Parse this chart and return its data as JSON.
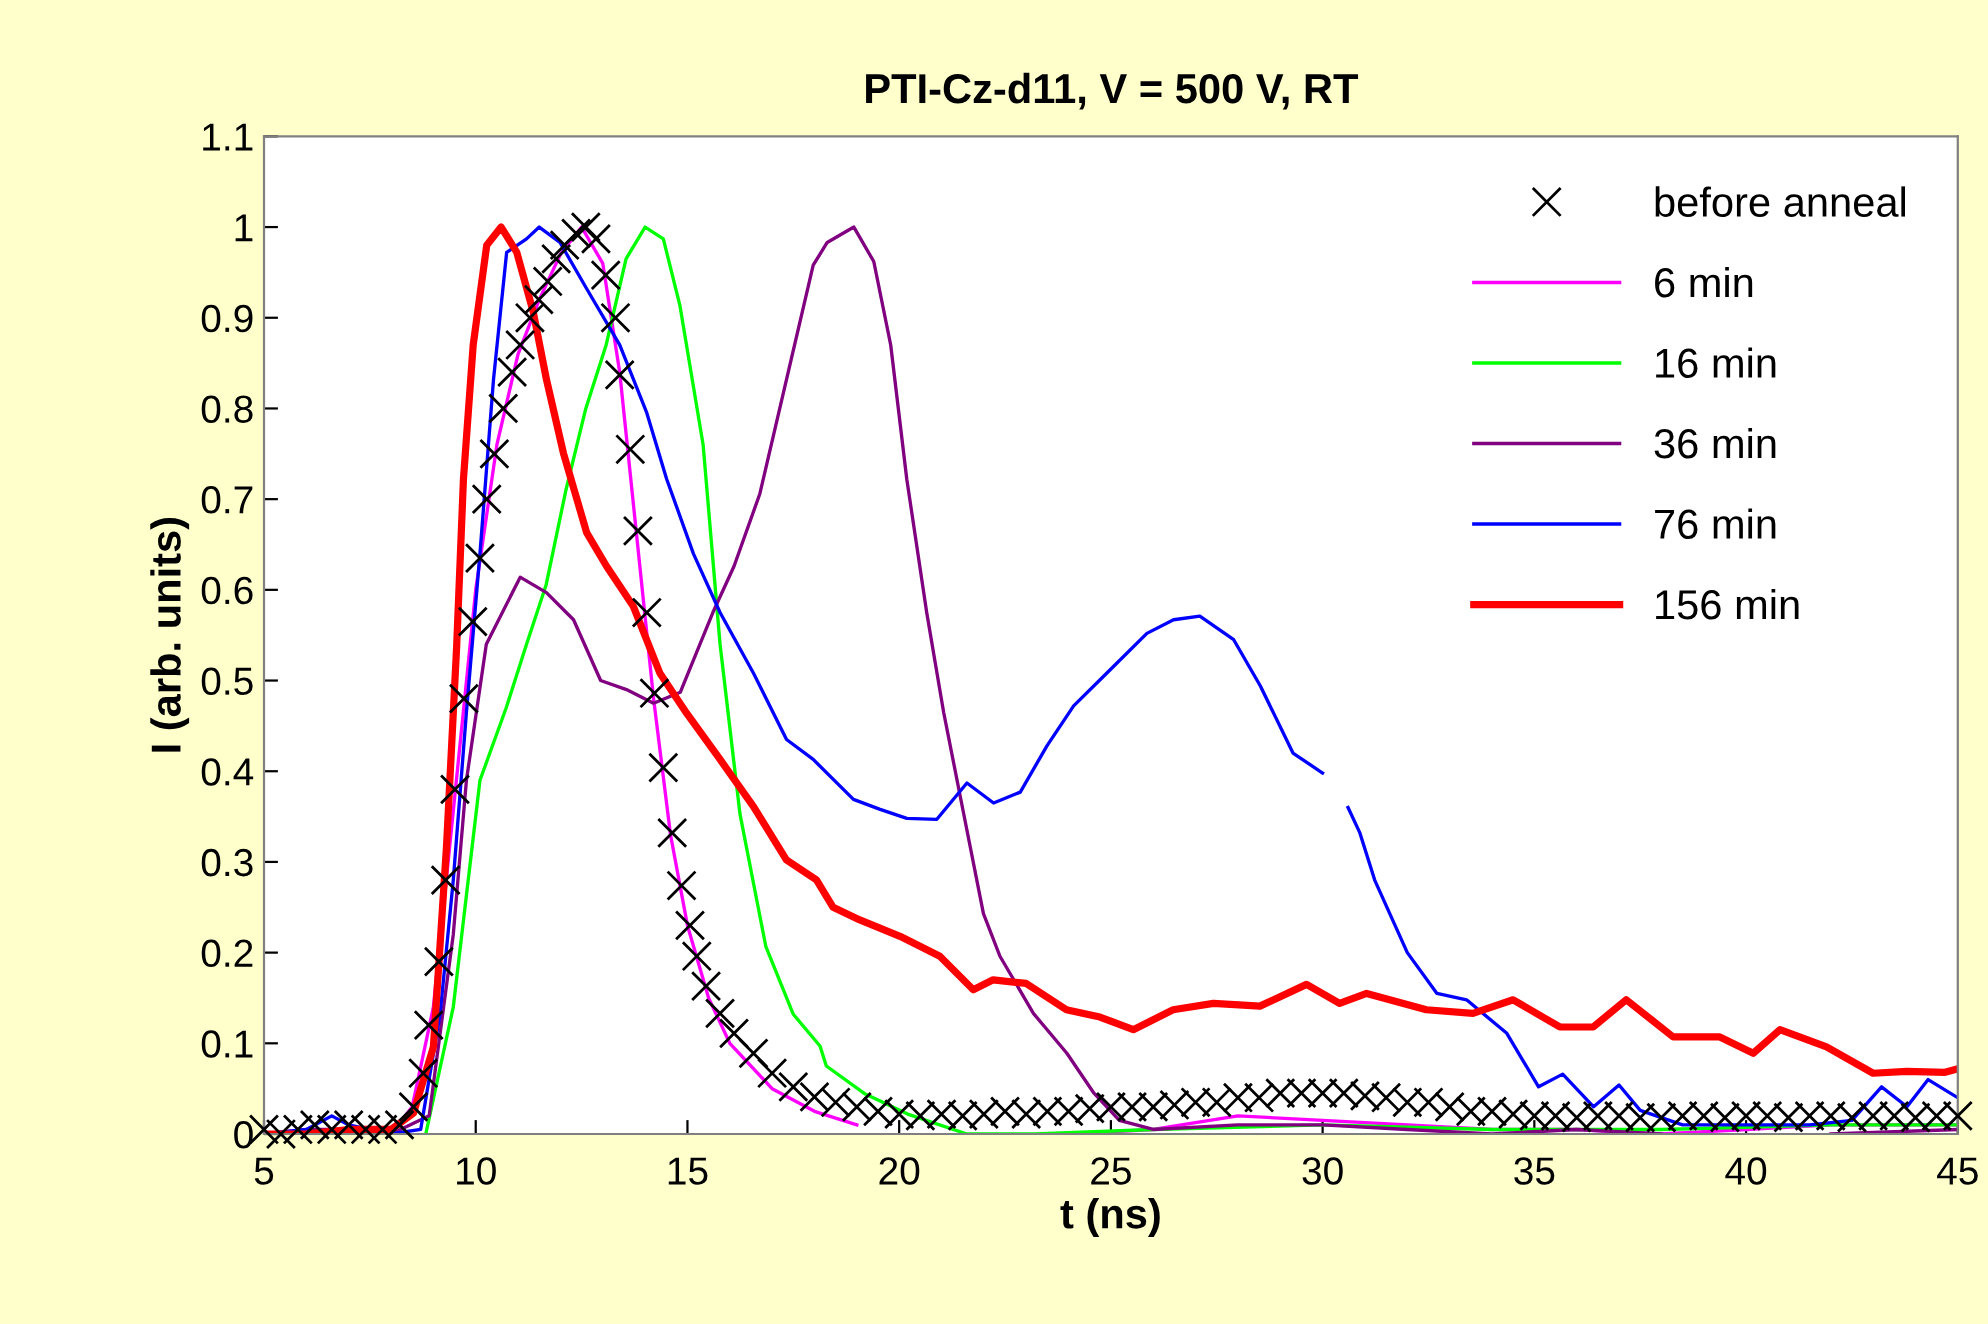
{
  "chart_data": {
    "type": "line",
    "title": "PTI-Cz-d11, V = 500 V, RT",
    "xlabel": "t (ns)",
    "ylabel": "I (arb. units)",
    "xlim": [
      5,
      45
    ],
    "xticks": [
      5,
      10,
      15,
      20,
      25,
      30,
      35,
      40,
      45
    ],
    "ylim": [
      0,
      1.1
    ],
    "yticks": [
      0,
      0.1,
      0.2,
      0.3,
      0.4,
      0.5,
      0.6,
      0.7,
      0.8,
      0.9,
      1,
      1.1
    ],
    "grid": false,
    "legend": "top right",
    "series": [
      {
        "name": "before anneal",
        "type": "scatter",
        "marker": "cross",
        "color": "#000000",
        "x": [
          5,
          5.4,
          5.8,
          6.2,
          6.6,
          7.0,
          7.4,
          7.8,
          8.2,
          8.53,
          8.76,
          8.89,
          9.13,
          9.29,
          9.51,
          9.72,
          9.93,
          10.1,
          10.26,
          10.44,
          10.65,
          10.86,
          11.05,
          11.28,
          11.49,
          11.7,
          11.9,
          12.1,
          12.37,
          12.6,
          12.84,
          13.07,
          13.3,
          13.4,
          13.65,
          13.83,
          14.04,
          14.22,
          14.43,
          14.64,
          14.86,
          15.06,
          15.22,
          15.44,
          15.77,
          16.1,
          16.56,
          17.0,
          17.5,
          18.0,
          18.5,
          19.0,
          19.5,
          20.0,
          20.5,
          21.0,
          21.5,
          22.0,
          22.5,
          23.0,
          23.5,
          24.0,
          24.5,
          25.0,
          25.5,
          26.0,
          26.5,
          27.0,
          27.5,
          28.0,
          28.5,
          29.0,
          29.5,
          30.0,
          30.5,
          31.0,
          31.5,
          32.0,
          32.5,
          33.0,
          33.5,
          34.0,
          34.5,
          35.0,
          35.5,
          36.0,
          36.5,
          37.0,
          37.5,
          38.0,
          38.5,
          39.0,
          39.5,
          40.0,
          40.5,
          41.0,
          41.5,
          42.0,
          42.5,
          43.0,
          43.5,
          44.0,
          44.5,
          45.0
        ],
        "values": [
          0.005,
          0.0,
          0.005,
          0.01,
          0.005,
          0.01,
          0.005,
          0.005,
          0.01,
          0.03,
          0.067,
          0.12,
          0.19,
          0.28,
          0.38,
          0.48,
          0.565,
          0.635,
          0.7,
          0.75,
          0.8,
          0.84,
          0.87,
          0.9,
          0.92,
          0.94,
          0.965,
          0.98,
          0.993,
          1.0,
          0.987,
          0.947,
          0.9,
          0.837,
          0.755,
          0.665,
          0.575,
          0.486,
          0.404,
          0.332,
          0.274,
          0.23,
          0.196,
          0.163,
          0.133,
          0.111,
          0.089,
          0.067,
          0.052,
          0.041,
          0.035,
          0.03,
          0.025,
          0.022,
          0.02,
          0.022,
          0.02,
          0.022,
          0.025,
          0.022,
          0.025,
          0.025,
          0.028,
          0.03,
          0.03,
          0.03,
          0.032,
          0.035,
          0.035,
          0.04,
          0.04,
          0.045,
          0.045,
          0.045,
          0.045,
          0.042,
          0.04,
          0.035,
          0.035,
          0.03,
          0.025,
          0.025,
          0.022,
          0.02,
          0.02,
          0.018,
          0.02,
          0.02,
          0.018,
          0.018,
          0.02,
          0.02,
          0.018,
          0.02,
          0.02,
          0.018,
          0.02,
          0.02,
          0.018,
          0.02,
          0.02,
          0.018,
          0.02,
          0.02
        ]
      },
      {
        "name": "6 min",
        "color": "#ff00ff",
        "x": [
          8,
          8.5,
          9,
          9.5,
          10,
          10.5,
          11,
          11.5,
          12,
          12.5,
          13,
          13.4,
          13.8,
          14.2,
          14.6,
          15,
          15.5,
          16,
          17,
          18,
          19,
          20,
          21,
          22,
          23,
          24,
          26,
          28,
          30,
          32,
          34,
          36,
          38,
          40,
          42,
          45
        ],
        "values": [
          0,
          0.03,
          0.14,
          0.37,
          0.6,
          0.76,
          0.86,
          0.92,
          0.97,
          1.0,
          0.96,
          0.84,
          0.66,
          0.48,
          0.33,
          0.23,
          0.15,
          0.1,
          0.05,
          0.025,
          0.01,
          null,
          null,
          null,
          null,
          0,
          0.005,
          0.02,
          0.015,
          0.01,
          0.005,
          0.005,
          0,
          0.005,
          0.01,
          0.01
        ]
      },
      {
        "name": "16 min",
        "color": "#00ff00",
        "x": [
          8.82,
          9.47,
          10.1,
          10.72,
          11.2,
          11.66,
          12.13,
          12.6,
          13.08,
          13.55,
          14.0,
          14.43,
          14.82,
          15.37,
          15.77,
          16.24,
          16.85,
          17.5,
          18.13,
          18.28,
          19.2,
          20.2,
          21.6,
          23.2,
          26,
          30,
          34,
          38,
          42,
          45
        ],
        "values": [
          0,
          0.14,
          0.39,
          0.47,
          0.54,
          0.605,
          0.71,
          0.8,
          0.87,
          0.965,
          1.0,
          0.987,
          0.914,
          0.76,
          0.54,
          0.353,
          0.207,
          0.132,
          0.097,
          0.075,
          0.044,
          0.022,
          0,
          0,
          0.005,
          0.01,
          0.005,
          0.005,
          0.01,
          0.01
        ]
      },
      {
        "name": "36 min",
        "color": "#800080",
        "x": [
          5,
          6,
          7,
          8,
          8.9,
          9.47,
          9.78,
          10.25,
          11.05,
          11.67,
          12.31,
          12.95,
          13.56,
          14.2,
          14.83,
          15.6,
          16.1,
          16.71,
          17.34,
          17.97,
          18.3,
          18.93,
          19.4,
          19.8,
          20.18,
          20.65,
          21.05,
          21.52,
          21.99,
          22.38,
          23.17,
          23.96,
          24.6,
          25.2,
          26,
          28,
          30,
          32,
          34,
          36,
          38,
          40,
          42,
          45
        ],
        "values": [
          0,
          0.005,
          0.005,
          0,
          0.02,
          0.22,
          0.39,
          0.54,
          0.614,
          0.597,
          0.567,
          0.5,
          0.49,
          0.475,
          0.487,
          0.575,
          0.626,
          0.706,
          0.832,
          0.958,
          0.983,
          1.0,
          0.962,
          0.87,
          0.722,
          0.575,
          0.465,
          0.354,
          0.243,
          0.196,
          0.133,
          0.089,
          0.045,
          0.015,
          0.005,
          0.01,
          0.01,
          0.005,
          0,
          0.005,
          0,
          null,
          0,
          0.005
        ]
      },
      {
        "name": "76 min",
        "color": "#0000ff",
        "x": [
          5,
          6,
          6.6,
          7,
          8,
          8.7,
          9.16,
          9.47,
          9.78,
          10.1,
          10.42,
          10.73,
          11.2,
          11.5,
          11.99,
          12.62,
          13.4,
          14.04,
          14.51,
          15.14,
          15.77,
          16.56,
          17.34,
          17.97,
          18.92,
          19.55,
          20.18,
          20.89,
          21.6,
          22.23,
          22.86,
          23.49,
          24.12,
          24.9,
          25.85,
          26.48,
          27.1,
          27.9,
          28.53,
          29.3,
          30.0,
          30.3,
          30.6,
          30.88,
          31.23,
          32.0,
          32.7,
          33.4,
          34.35,
          35.1,
          35.67,
          36.4,
          37.0,
          37.5,
          38.5,
          40,
          41.5,
          42.5,
          43.2,
          43.8,
          44.3,
          45
        ],
        "values": [
          0,
          0.005,
          0.02,
          0.01,
          0,
          0.005,
          0.133,
          0.28,
          0.465,
          0.64,
          0.832,
          0.972,
          0.987,
          1.0,
          0.983,
          0.932,
          0.87,
          0.795,
          0.722,
          0.64,
          0.575,
          0.508,
          0.435,
          0.413,
          0.369,
          0.358,
          0.348,
          0.347,
          0.387,
          0.365,
          0.377,
          0.428,
          0.472,
          0.508,
          0.552,
          0.567,
          0.571,
          0.545,
          0.494,
          0.42,
          0.398,
          null,
          0.36,
          0.332,
          0.28,
          0.2,
          0.155,
          0.148,
          0.111,
          0.052,
          0.066,
          0.03,
          0.054,
          0.026,
          0.01,
          0.01,
          0.01,
          0.015,
          0.052,
          0.03,
          0.06,
          0.04
        ]
      },
      {
        "name": "156 min",
        "color": "#ff0000",
        "x": [
          5,
          6,
          7,
          8,
          8.53,
          9.0,
          9.31,
          9.55,
          9.71,
          9.94,
          10.26,
          10.6,
          10.97,
          11.36,
          11.67,
          12.07,
          12.62,
          13.09,
          13.72,
          14.35,
          14.98,
          15.77,
          16.56,
          17.34,
          18.05,
          18.44,
          19.07,
          20.02,
          20.96,
          21.75,
          22.22,
          23.0,
          23.95,
          24.74,
          25.53,
          26.47,
          27.42,
          28.52,
          29.62,
          30.4,
          31.04,
          32.45,
          33.55,
          34.5,
          35.6,
          36.39,
          37.17,
          38.28,
          39.38,
          40.17,
          40.8,
          41.9,
          43.0,
          43.79,
          44.7,
          45
        ],
        "values": [
          0,
          0,
          0.005,
          0.005,
          0.023,
          0.096,
          0.317,
          0.538,
          0.722,
          0.87,
          0.98,
          1.0,
          0.972,
          0.906,
          0.832,
          0.751,
          0.663,
          0.626,
          0.582,
          0.508,
          0.464,
          0.413,
          0.361,
          0.302,
          0.28,
          0.25,
          0.236,
          0.218,
          0.196,
          0.159,
          0.17,
          0.166,
          0.137,
          0.129,
          0.115,
          0.137,
          0.144,
          0.141,
          0.165,
          0.144,
          0.155,
          0.137,
          0.133,
          0.148,
          0.118,
          0.118,
          0.148,
          0.107,
          0.107,
          0.089,
          0.115,
          0.096,
          0.067,
          0.069,
          0.068,
          0.072
        ]
      }
    ]
  }
}
